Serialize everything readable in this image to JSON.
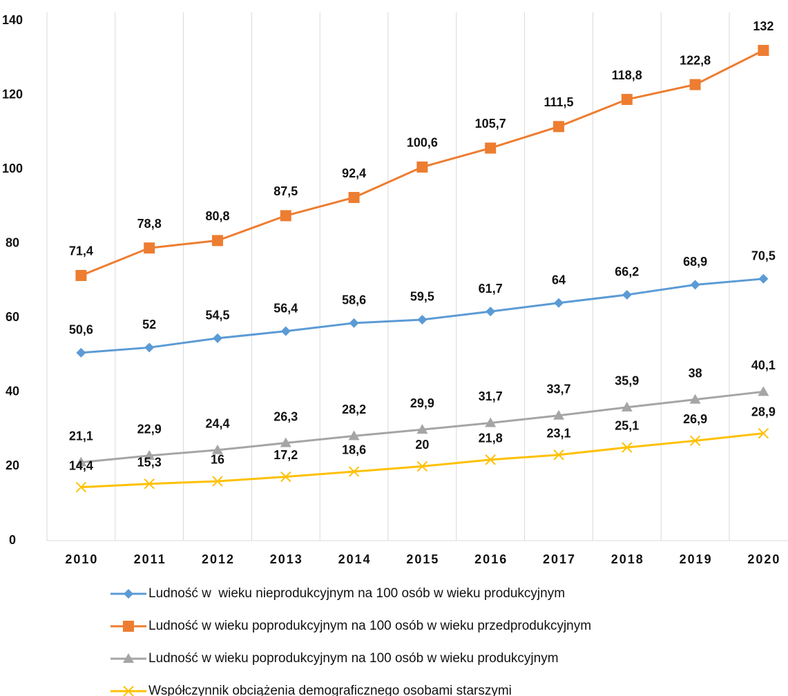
{
  "chart_data": {
    "type": "line",
    "categories": [
      "2010",
      "2011",
      "2012",
      "2013",
      "2014",
      "2015",
      "2016",
      "2017",
      "2018",
      "2019",
      "2020"
    ],
    "ylim": [
      0,
      140
    ],
    "yticks": [
      0,
      20,
      40,
      60,
      80,
      100,
      120,
      140
    ],
    "series": [
      {
        "name": "Ludność w  wieku nieprodukcyjnym na 100 osób w wieku produkcyjnym",
        "color": "#5b9bd5",
        "marker": "diamond",
        "values": [
          50.6,
          52,
          54.5,
          56.4,
          58.6,
          59.5,
          61.7,
          64,
          66.2,
          68.9,
          70.5
        ],
        "value_labels": [
          "50,6",
          "52",
          "54,5",
          "56,4",
          "58,6",
          "59,5",
          "61,7",
          "64",
          "66,2",
          "68,9",
          "70,5"
        ]
      },
      {
        "name": "Ludność w wieku poprodukcyjnym na 100 osób w wieku przedprodukcyjnym",
        "color": "#ed7d31",
        "marker": "square",
        "values": [
          71.4,
          78.8,
          80.8,
          87.5,
          92.4,
          100.6,
          105.7,
          111.5,
          118.8,
          122.8,
          132
        ],
        "value_labels": [
          "71,4",
          "78,8",
          "80,8",
          "87,5",
          "92,4",
          "100,6",
          "105,7",
          "111,5",
          "118,8",
          "122,8",
          "132"
        ]
      },
      {
        "name": "Ludność w wieku poprodukcyjnym na 100 osób w wieku produkcyjnym",
        "color": "#a5a5a5",
        "marker": "triangle",
        "values": [
          21.1,
          22.9,
          24.4,
          26.3,
          28.2,
          29.9,
          31.7,
          33.7,
          35.9,
          38,
          40.1
        ],
        "value_labels": [
          "21,1",
          "22,9",
          "24,4",
          "26,3",
          "28,2",
          "29,9",
          "31,7",
          "33,7",
          "35,9",
          "38",
          "40,1"
        ]
      },
      {
        "name": "Współczynnik obciążenia demograficznego osobami starszymi",
        "color": "#ffc000",
        "marker": "x",
        "values": [
          14.4,
          15.3,
          16,
          17.2,
          18.6,
          20,
          21.8,
          23.1,
          25.1,
          26.9,
          28.9
        ],
        "value_labels": [
          "14,4",
          "15,3",
          "16",
          "17,2",
          "18,6",
          "20",
          "21,8",
          "23,1",
          "25,1",
          "26,9",
          "28,9"
        ]
      }
    ]
  }
}
